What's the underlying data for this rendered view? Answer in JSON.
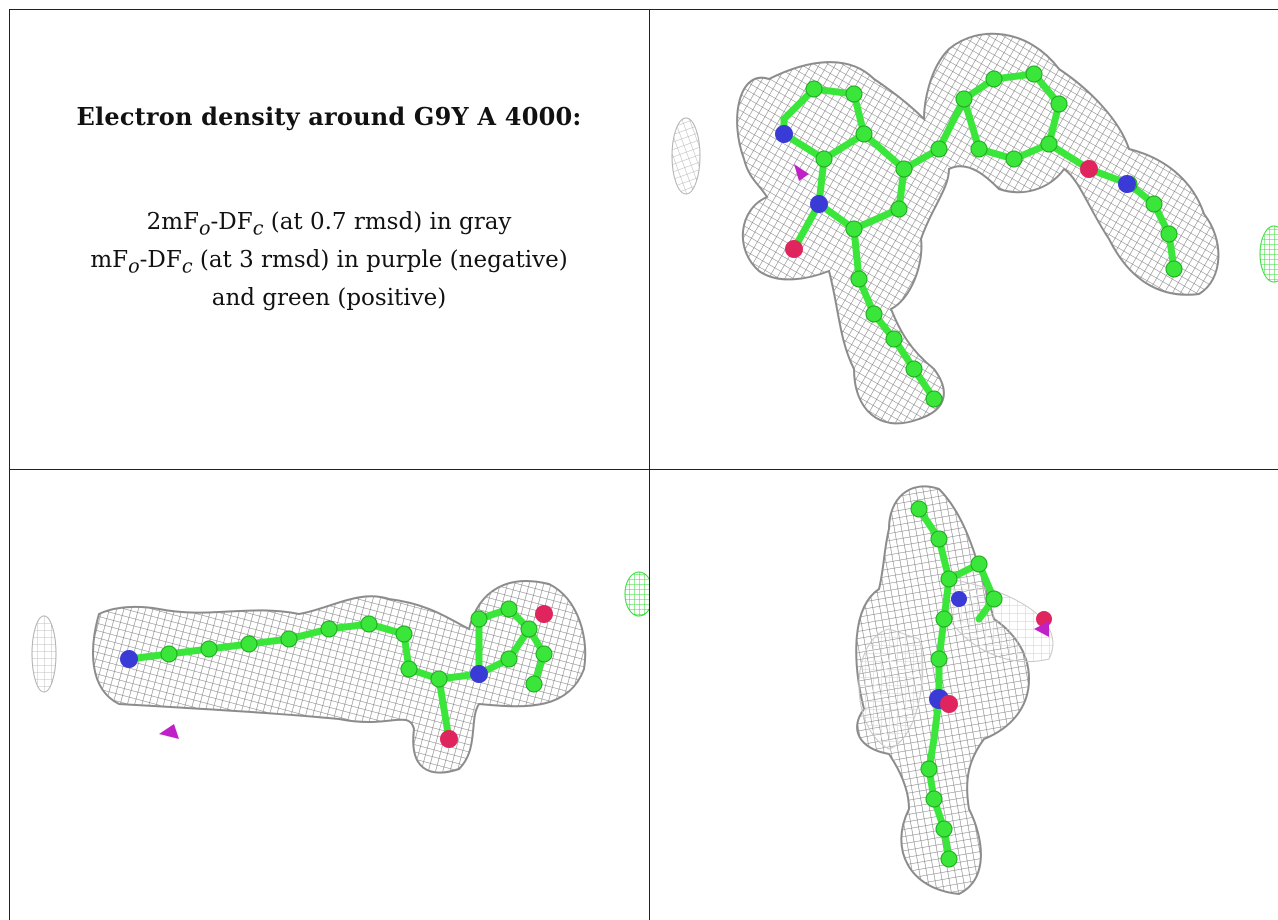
{
  "caption": {
    "title": "Electron density around G9Y A 4000:",
    "line1_a": "2mF",
    "line1_sub1": "o",
    "line1_b": "-DF",
    "line1_sub2": "c",
    "line1_c": " (at 0.7 rmsd) in gray",
    "line2_a": "mF",
    "line2_sub1": "o",
    "line2_b": "-DF",
    "line2_sub2": "c",
    "line2_c": " (at 3 rmsd) in purple (negative)",
    "line3": "and green (positive)"
  },
  "colors": {
    "mesh": "#8c8c8c",
    "carbon": "#39e639",
    "nitrogen": "#3a3ad6",
    "oxygen": "#e0245e",
    "negative_density": "#c020c8",
    "positive_density": "#33dd33"
  },
  "views": [
    "top-view",
    "side-view",
    "end-view"
  ]
}
